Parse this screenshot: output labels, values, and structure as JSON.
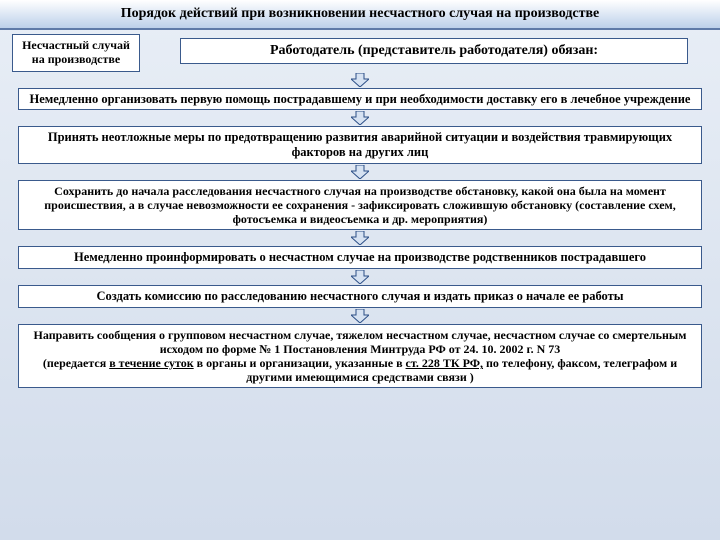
{
  "colors": {
    "page_bg_top": "#e8eef6",
    "page_bg_bottom": "#d2dceb",
    "title_bg1": "#ffffff",
    "title_bg2": "#bcd0ea",
    "title_border": "#5e7aa8",
    "title_text": "#000000",
    "box_bg": "#ffffff",
    "box_border": "#3a5a8c",
    "box_text": "#000000",
    "arrow_stroke": "#2a4d85",
    "arrow_fill": "#d6e2f2"
  },
  "title": "Порядок действий  при возникновении несчастного случая на производстве",
  "start_box": "Несчастный случай на производстве",
  "employer_box": "Работодатель (представитель работодателя) обязан:",
  "steps": [
    {
      "fs": 12.5,
      "text": "Немедленно  организовать первую  помощь пострадавшему  и при необходимости доставку его  в лечебное учреждение"
    },
    {
      "fs": 12.5,
      "text": "Принять  неотложные меры по предотвращению развития аварийной ситуации и воздействия травмирующих факторов на других лиц"
    },
    {
      "fs": 12,
      "text": "Сохранить до начала расследования несчастного случая на производстве обстановку, какой она была на момент происшествия, а в случае невозможности ее сохранения - зафиксировать сложившую обстановку (составление схем, фотосъемка и видеосъемка и др. мероприятия)"
    },
    {
      "fs": 12.5,
      "text": "Немедленно проинформировать о несчастном случае на производстве родственников пострадавшего"
    },
    {
      "fs": 12.5,
      "text": "Создать комиссию по расследованию несчастного случая и издать  приказ о начале ее работы"
    },
    {
      "fs": 12,
      "parts": [
        {
          "t": "Направить  сообщения о групповом несчастном случае, тяжелом несчастном случае, несчастном случае со смертельным исходом по форме № 1 Постановления Минтруда РФ от 24. 10. 2002 г. N 73"
        },
        {
          "br": true
        },
        {
          "t": "(передается "
        },
        {
          "t": "в течение суток",
          "u": true
        },
        {
          "t": " в органы и организации, указанные в "
        },
        {
          "t": "ст. 228 ТК РФ,",
          "u": true
        },
        {
          "t": " по телефону, факсом, телеграфом и другими имеющимися средствами связи )"
        }
      ]
    }
  ]
}
